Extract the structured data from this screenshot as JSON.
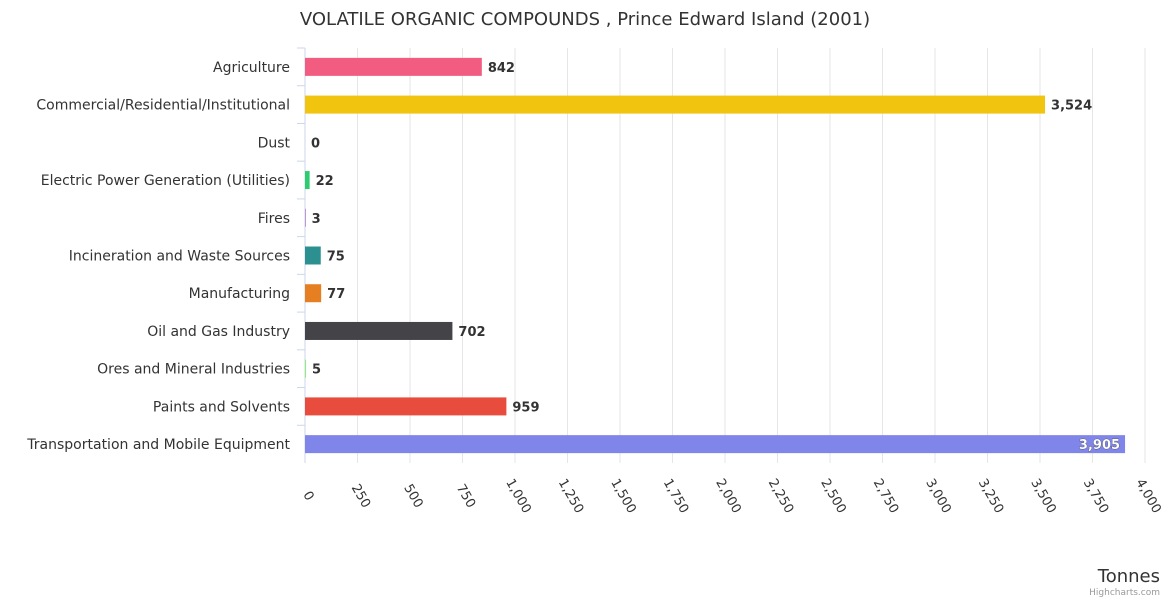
{
  "chart_data": {
    "type": "bar",
    "orientation": "horizontal",
    "title": "VOLATILE ORGANIC COMPOUNDS , Prince Edward Island (2001)",
    "xlabel": "Tonnes",
    "ylabel": "",
    "categories": [
      "Agriculture",
      "Commercial/Residential/Institutional",
      "Dust",
      "Electric Power Generation (Utilities)",
      "Fires",
      "Incineration and Waste Sources",
      "Manufacturing",
      "Oil and Gas Industry",
      "Ores and Mineral Industries",
      "Paints and Solvents",
      "Transportation and Mobile Equipment"
    ],
    "values": [
      842,
      3524,
      0,
      22,
      3,
      75,
      77,
      702,
      5,
      959,
      3905
    ],
    "value_labels": [
      "842",
      "3,524",
      "0",
      "22",
      "3",
      "75",
      "77",
      "702",
      "5",
      "959",
      "3,905"
    ],
    "colors": [
      "#f15c80",
      "#f1c40f",
      "#7cb5ec",
      "#2ecc71",
      "#9b59b6",
      "#2b908f",
      "#e67e22",
      "#434348",
      "#90ed7d",
      "#e74c3c",
      "#8085e9"
    ],
    "xlim": [
      0,
      4000
    ],
    "ticks": [
      0,
      250,
      500,
      750,
      1000,
      1250,
      1500,
      1750,
      2000,
      2250,
      2500,
      2750,
      3000,
      3250,
      3500,
      3750,
      4000
    ],
    "tick_labels": [
      "0",
      "250",
      "500",
      "750",
      "1,000",
      "1,250",
      "1,500",
      "1,750",
      "2,000",
      "2,250",
      "2,500",
      "2,750",
      "3,000",
      "3,250",
      "3,500",
      "3,750",
      "4,000"
    ],
    "grid": true,
    "legend": false
  },
  "credits": "Highcharts.com"
}
